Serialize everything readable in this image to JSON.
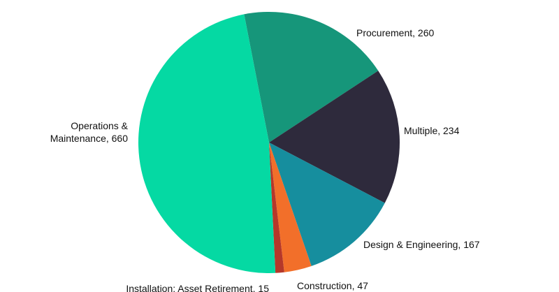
{
  "chart_data": {
    "type": "pie",
    "values": [
      260,
      234,
      167,
      47,
      15,
      660
    ],
    "value_labels": [
      "Procurement, 260",
      "Multiple, 234",
      "Design & Engineering, 167",
      "Construction, 47",
      "Installation; Asset Retirement, 15",
      "Operations &\nMaintenance, 660"
    ],
    "colors": [
      "#16967a",
      "#2e2a3c",
      "#168e9e",
      "#f26f2a",
      "#b5382a",
      "#05d9a3"
    ]
  }
}
